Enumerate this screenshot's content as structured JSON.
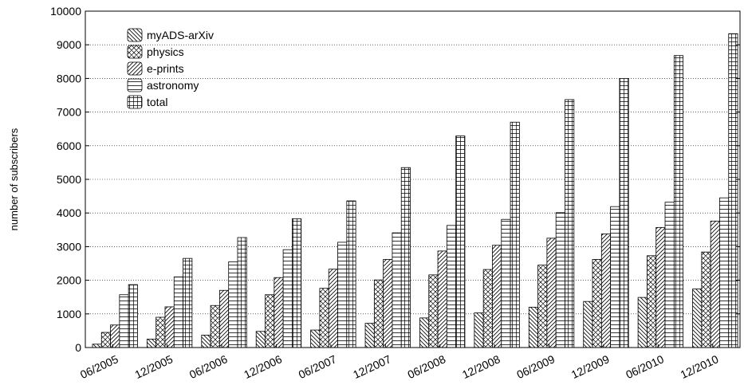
{
  "chart_data": {
    "type": "bar",
    "ylabel": "number of subscribers",
    "xlabel": "",
    "title": "",
    "ylim": [
      0,
      10000
    ],
    "yticks": [
      0,
      1000,
      2000,
      3000,
      4000,
      5000,
      6000,
      7000,
      8000,
      9000,
      10000
    ],
    "grid": "y",
    "legend_position": "top-left",
    "categories": [
      "06/2005",
      "12/2005",
      "06/2006",
      "12/2006",
      "06/2007",
      "12/2007",
      "06/2008",
      "12/2008",
      "06/2009",
      "12/2009",
      "06/2010",
      "12/2010"
    ],
    "series": [
      {
        "name": "myADS-arXiv",
        "pattern": "diagonal",
        "values": [
          100,
          250,
          370,
          480,
          520,
          720,
          880,
          1030,
          1200,
          1370,
          1490,
          1740
        ]
      },
      {
        "name": "physics",
        "pattern": "crosshatch",
        "values": [
          450,
          900,
          1250,
          1570,
          1760,
          2010,
          2160,
          2320,
          2450,
          2620,
          2730,
          2840
        ]
      },
      {
        "name": "e-prints",
        "pattern": "anti-diagonal",
        "values": [
          670,
          1210,
          1700,
          2080,
          2330,
          2620,
          2870,
          3040,
          3250,
          3380,
          3570,
          3760
        ]
      },
      {
        "name": "astronomy",
        "pattern": "horizontal",
        "values": [
          1570,
          2100,
          2550,
          2910,
          3130,
          3410,
          3630,
          3810,
          4010,
          4190,
          4320,
          4450
        ]
      },
      {
        "name": "total",
        "pattern": "grid",
        "values": [
          1870,
          2650,
          3270,
          3830,
          4360,
          5350,
          6290,
          6700,
          7370,
          8000,
          8680,
          9330
        ]
      }
    ]
  }
}
